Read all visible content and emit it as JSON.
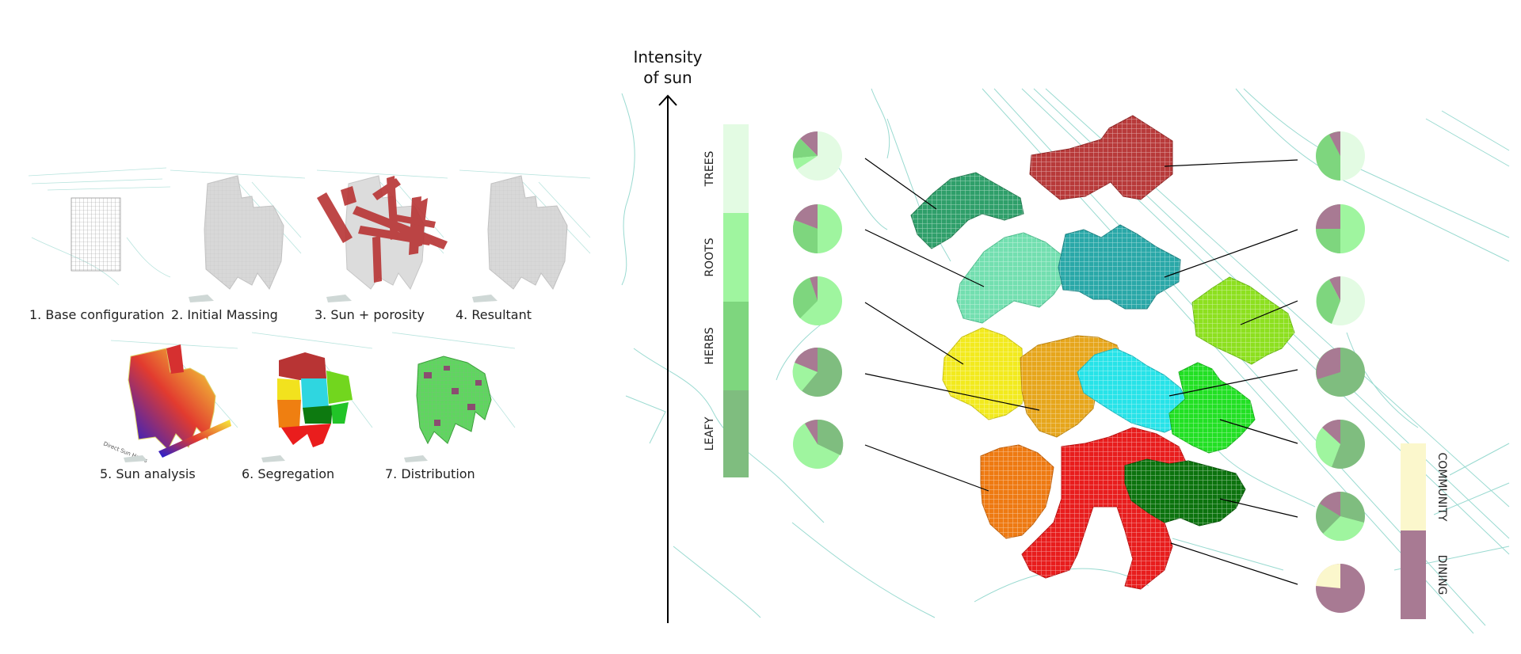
{
  "process_steps": [
    {
      "label": "1. Base configuration"
    },
    {
      "label": "2. Initial Massing"
    },
    {
      "label": "3. Sun + porosity"
    },
    {
      "label": "4. Resultant"
    },
    {
      "label": "5. Sun analysis"
    },
    {
      "label": "6. Segregation"
    },
    {
      "label": "7. Distribution"
    }
  ],
  "sun_analysis_legend": "Direct Sun Hours",
  "axis": {
    "line1": "Intensity",
    "line2": "of sun"
  },
  "planting_categories": [
    {
      "label": "TREES",
      "color": "#e3fbe3"
    },
    {
      "label": "ROOTS",
      "color": "#9ff59f"
    },
    {
      "label": "HERBS",
      "color": "#7ed67e"
    },
    {
      "label": "LEAFY",
      "color": "#7fbd7f"
    }
  ],
  "use_categories": [
    {
      "label": "COMMUNITY",
      "color": "#fbf7cc"
    },
    {
      "label": "DINING",
      "color": "#a87a93"
    }
  ],
  "colors": {
    "site_lines": "#8fd6cc",
    "mauve": "#a87a93",
    "pale_green": "#e3fbe3",
    "light_green": "#9ff59f",
    "mid_green": "#7ed67e",
    "dark_green": "#7fbd7f",
    "cream": "#fbf7cc"
  }
}
